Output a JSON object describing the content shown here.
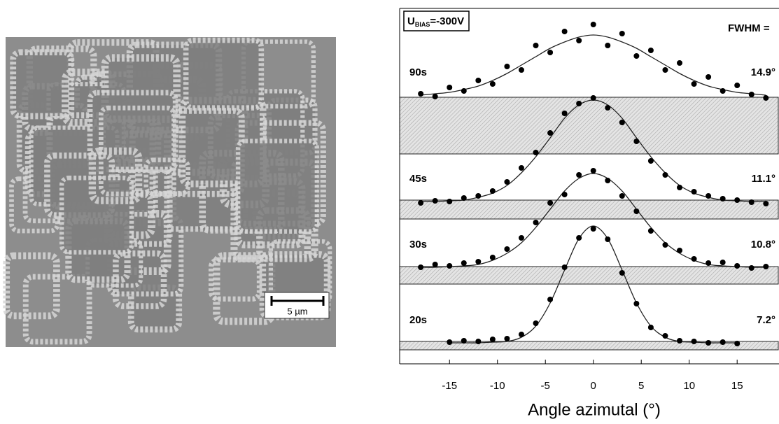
{
  "image": {
    "scale_bar": "5 µm"
  },
  "chart_data": {
    "type": "scatter",
    "annotation": {
      "u": "U",
      "sub": "BIAS",
      "rest": "=-300V"
    },
    "fwhm_header": "FWHM =",
    "xlabel": "Angle azimutal (°)",
    "xlim": [
      -20.2,
      19.0
    ],
    "xticks": [
      -15,
      -10,
      -5,
      0,
      5,
      10,
      15
    ],
    "ylim": [
      0,
      5.08
    ],
    "color": "#000000",
    "series": [
      {
        "name": "90s",
        "label": "14.9°",
        "x": [
          -18,
          -16.5,
          -15,
          -13.5,
          -12,
          -10.5,
          -9,
          -7.5,
          -6,
          -4.5,
          -3,
          -1.5,
          0,
          1.5,
          3,
          4.5,
          6,
          7.5,
          9,
          10.5,
          12,
          13.5,
          15,
          16.5,
          18
        ],
        "values": [
          3.86,
          3.82,
          3.95,
          3.9,
          4.05,
          4.0,
          4.25,
          4.2,
          4.55,
          4.45,
          4.75,
          4.62,
          4.85,
          4.55,
          4.72,
          4.4,
          4.48,
          4.2,
          4.3,
          4.0,
          4.1,
          3.9,
          3.98,
          3.85,
          3.8
        ],
        "fit": [
          3.84,
          3.86,
          3.88,
          3.92,
          3.97,
          4.05,
          4.15,
          4.27,
          4.39,
          4.51,
          4.6,
          4.67,
          4.7,
          4.67,
          4.6,
          4.51,
          4.39,
          4.27,
          4.15,
          4.05,
          3.97,
          3.92,
          3.88,
          3.86,
          3.84
        ]
      },
      {
        "name": "45s",
        "label": "11.1°",
        "x": [
          -18,
          -16.5,
          -15,
          -13.5,
          -12,
          -10.5,
          -9,
          -7.5,
          -6,
          -4.5,
          -3,
          -1.5,
          0,
          1.5,
          3,
          4.5,
          6,
          7.5,
          9,
          10.5,
          12,
          13.5,
          15,
          16.5,
          18
        ],
        "values": [
          2.3,
          2.33,
          2.32,
          2.37,
          2.4,
          2.47,
          2.6,
          2.8,
          3.02,
          3.3,
          3.58,
          3.72,
          3.8,
          3.66,
          3.45,
          3.18,
          2.9,
          2.7,
          2.52,
          2.46,
          2.4,
          2.36,
          2.34,
          2.31,
          2.29
        ],
        "fit": [
          2.32,
          2.32,
          2.33,
          2.34,
          2.38,
          2.44,
          2.55,
          2.73,
          2.96,
          3.23,
          3.51,
          3.7,
          3.77,
          3.7,
          3.51,
          3.23,
          2.96,
          2.73,
          2.55,
          2.44,
          2.38,
          2.34,
          2.33,
          2.32,
          2.32
        ]
      },
      {
        "name": "30s",
        "label": "10.8°",
        "x": [
          -18,
          -16.5,
          -15,
          -13.5,
          -12,
          -10.5,
          -9,
          -7.5,
          -6,
          -4.5,
          -3,
          -1.5,
          0,
          1.5,
          3,
          4.5,
          6,
          7.5,
          9,
          10.5,
          12,
          13.5,
          15,
          16.5,
          18
        ],
        "values": [
          1.38,
          1.42,
          1.4,
          1.44,
          1.46,
          1.52,
          1.64,
          1.8,
          2.02,
          2.3,
          2.42,
          2.7,
          2.76,
          2.62,
          2.4,
          2.18,
          1.9,
          1.7,
          1.62,
          1.5,
          1.44,
          1.45,
          1.4,
          1.37,
          1.39
        ],
        "fit": [
          1.38,
          1.38,
          1.39,
          1.4,
          1.42,
          1.48,
          1.58,
          1.73,
          1.95,
          2.21,
          2.47,
          2.65,
          2.72,
          2.65,
          2.47,
          2.21,
          1.95,
          1.73,
          1.58,
          1.48,
          1.42,
          1.4,
          1.39,
          1.38,
          1.38
        ]
      },
      {
        "name": "20s",
        "label": "7.2°",
        "x": [
          -15,
          -13.5,
          -12,
          -10.5,
          -9,
          -7.5,
          -6,
          -4.5,
          -3,
          -1.5,
          0,
          1.5,
          3,
          4.5,
          6,
          7.5,
          9,
          10.5,
          12,
          13.5,
          15
        ],
        "values": [
          0.31,
          0.33,
          0.32,
          0.35,
          0.36,
          0.42,
          0.58,
          0.92,
          1.38,
          1.8,
          1.93,
          1.78,
          1.3,
          0.86,
          0.52,
          0.4,
          0.33,
          0.32,
          0.3,
          0.31,
          0.29
        ],
        "fit": [
          0.3,
          0.3,
          0.3,
          0.31,
          0.32,
          0.38,
          0.54,
          0.87,
          1.34,
          1.79,
          1.97,
          1.79,
          1.34,
          0.87,
          0.54,
          0.38,
          0.32,
          0.31,
          0.3,
          0.3,
          0.3
        ]
      }
    ]
  }
}
